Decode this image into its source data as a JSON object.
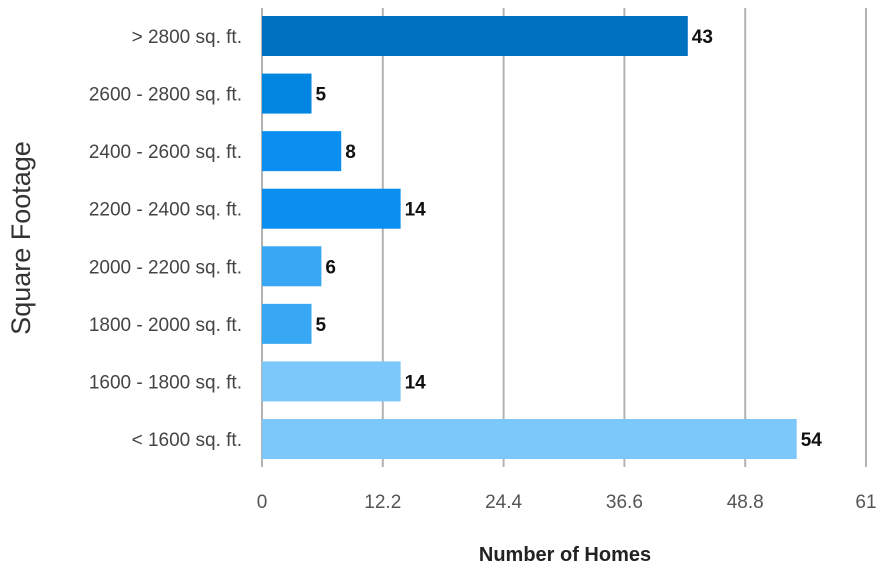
{
  "chart_data": {
    "type": "bar",
    "orientation": "horizontal",
    "categories": [
      "> 2800 sq. ft.",
      "2600 - 2800 sq. ft.",
      "2400 - 2600 sq. ft.",
      "2200 - 2400 sq. ft.",
      "2000 - 2200 sq. ft.",
      "1800 - 2000 sq. ft.",
      "1600 - 1800 sq. ft.",
      "< 1600 sq. ft."
    ],
    "values": [
      43,
      5,
      8,
      14,
      6,
      5,
      14,
      54
    ],
    "colors": [
      "#0070c0",
      "#0085e0",
      "#0a8ff0",
      "#0a8ff0",
      "#38a8f5",
      "#38a8f5",
      "#7cc8fb",
      "#7cc8fb"
    ],
    "xlabel": "Number of Homes",
    "ylabel": "Square Footage",
    "xlim": [
      0,
      61
    ],
    "xticks": [
      "0",
      "12.2",
      "24.4",
      "36.6",
      "48.8",
      "61"
    ],
    "grid": true,
    "gridline_color": "#b3b3b3"
  }
}
